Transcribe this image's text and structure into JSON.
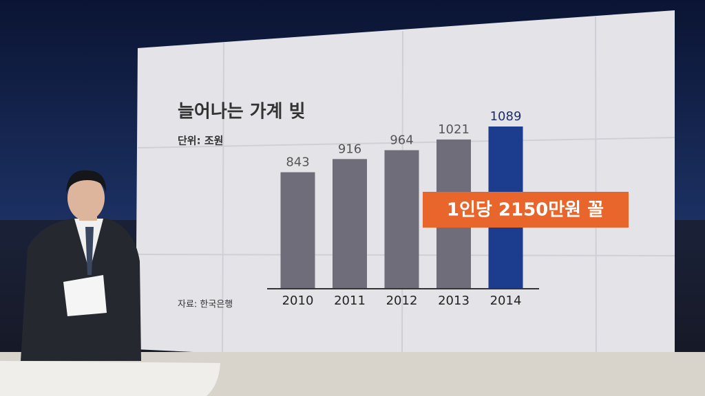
{
  "chart_data": {
    "type": "bar",
    "title": "늘어나는 가계 빚",
    "subtitle": "단위: 조원",
    "source": "자료: 한국은행",
    "annotation": "1인당 2150만원 꼴",
    "categories": [
      "2010",
      "2011",
      "2012",
      "2013",
      "2014"
    ],
    "values": [
      843,
      916,
      964,
      1021,
      1089
    ],
    "colors": [
      "#6f6d79",
      "#6f6d79",
      "#6f6d79",
      "#6f6d79",
      "#1c3d8e"
    ]
  }
}
